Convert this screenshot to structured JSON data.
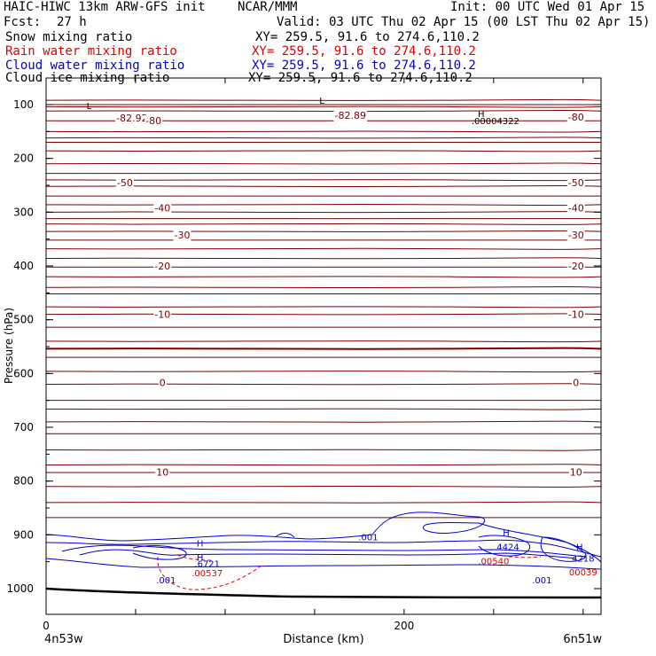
{
  "header": {
    "title_left": "HAIC-HIWC 13km ARW-GFS init",
    "institution": "NCAR/MMM",
    "init": "Init: 00 UTC Wed 01 Apr 15",
    "fcst_label": "Fcst:",
    "fcst_value": "27 h",
    "valid": "Valid: 03 UTC Thu 02 Apr 15 (00 LST Thu 02 Apr 15)"
  },
  "fields": [
    {
      "name": "Snow mixing ratio",
      "xy": "XY= 259.5, 91.6 to 274.6,110.2",
      "color": "#000000"
    },
    {
      "name": "Rain water mixing ratio",
      "xy": "XY= 259.5, 91.6 to 274.6,110.2",
      "color": "#e00000"
    },
    {
      "name": "Cloud water mixing ratio",
      "xy": "XY= 259.5, 91.6 to 274.6,110.2",
      "color": "#0000d0"
    },
    {
      "name": "Cloud ice mixing ratio",
      "xy": "XY= 259.5, 91.6 to 274.6,110.2",
      "color": "#000000"
    }
  ],
  "chart_data": {
    "type": "contour",
    "xlabel": "Distance (km)",
    "ylabel": "Pressure (hPa)",
    "x_ticks": [
      0,
      200
    ],
    "y_ticks": [
      100,
      200,
      300,
      400,
      500,
      600,
      700,
      800,
      900,
      1000
    ],
    "xlim": [
      0,
      310
    ],
    "ylim": [
      1050,
      80
    ],
    "left_location": "4n53w",
    "right_location": "6n51w",
    "temperature_contour_labels": [
      {
        "x": 48,
        "p": 125,
        "text": "-82.92"
      },
      {
        "x": 170,
        "p": 120,
        "text": "-82.89"
      },
      {
        "x": 60,
        "p": 130,
        "text": "-80"
      },
      {
        "x": 296,
        "p": 123,
        "text": "-80"
      },
      {
        "x": 44,
        "p": 245,
        "text": "-50"
      },
      {
        "x": 296,
        "p": 245,
        "text": "-50"
      },
      {
        "x": 65,
        "p": 292,
        "text": "-40"
      },
      {
        "x": 296,
        "p": 292,
        "text": "-40"
      },
      {
        "x": 76,
        "p": 342,
        "text": "-30"
      },
      {
        "x": 296,
        "p": 342,
        "text": "-30"
      },
      {
        "x": 65,
        "p": 400,
        "text": "-20"
      },
      {
        "x": 296,
        "p": 400,
        "text": "-20"
      },
      {
        "x": 65,
        "p": 490,
        "text": "-10"
      },
      {
        "x": 296,
        "p": 490,
        "text": "-10"
      },
      {
        "x": 65,
        "p": 617,
        "text": "0"
      },
      {
        "x": 296,
        "p": 617,
        "text": "0"
      },
      {
        "x": 65,
        "p": 783,
        "text": "10"
      },
      {
        "x": 296,
        "p": 783,
        "text": "10"
      }
    ],
    "extrema_labels": [
      {
        "x": 154,
        "p": 98,
        "text": "L",
        "color": "#000000"
      },
      {
        "x": 24,
        "p": 108,
        "text": "L",
        "color": "#000000"
      },
      {
        "x": 243,
        "p": 123,
        "text": "H",
        "color": "#000000"
      },
      {
        "x": 251,
        "p": 136,
        "text": ".00004322",
        "color": "#000000"
      },
      {
        "x": 86,
        "p": 922,
        "text": "H",
        "color": "#0000d0"
      },
      {
        "x": 86,
        "p": 948,
        "text": "H",
        "color": "#0000d0"
      },
      {
        "x": 90,
        "p": 960,
        "text": ".6721",
        "color": "#0000d0"
      },
      {
        "x": 90,
        "p": 977,
        "text": ".00537",
        "color": "#e00000"
      },
      {
        "x": 180,
        "p": 910,
        "text": ".001",
        "color": "#0000d0"
      },
      {
        "x": 67,
        "p": 990,
        "text": ".001",
        "color": "#0000d0"
      },
      {
        "x": 257,
        "p": 902,
        "text": "H",
        "color": "#0000d0"
      },
      {
        "x": 258,
        "p": 928,
        "text": "4424",
        "color": "#0000d0"
      },
      {
        "x": 250,
        "p": 955,
        "text": ".00540",
        "color": "#e00000"
      },
      {
        "x": 277,
        "p": 990,
        "text": ".001",
        "color": "#0000d0"
      },
      {
        "x": 298,
        "p": 928,
        "text": "H",
        "color": "#0000d0"
      },
      {
        "x": 300,
        "p": 950,
        "text": "4218",
        "color": "#0000d0"
      },
      {
        "x": 300,
        "p": 975,
        "text": "00039",
        "color": "#e00000"
      }
    ]
  }
}
